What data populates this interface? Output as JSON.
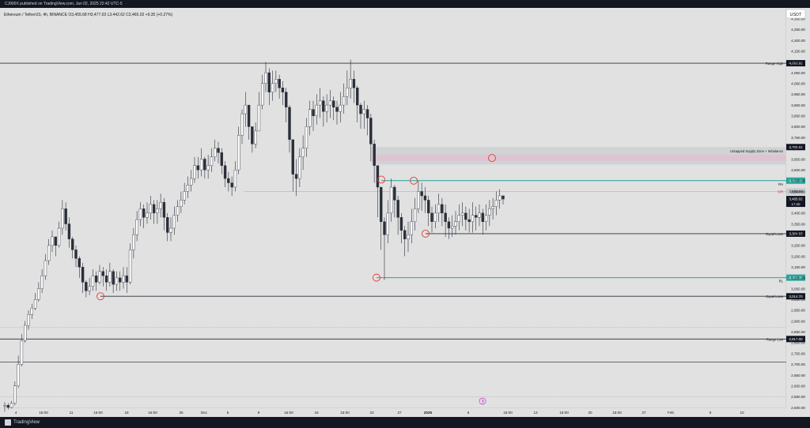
{
  "header": {
    "published": "CJ900X published on TradingView.com, Jan 02, 2025 22:42 UTC-5"
  },
  "chart_data": {
    "type": "candlestick",
    "legend": {
      "symbol": "Ethereum / TetherUS",
      "interval": "4h",
      "exchange": "BINANCE",
      "ohlc": "O3,455.68 H3,477.03 L3,442.62 C3,465.02 +9.35 (+0.27%)"
    },
    "currency_button": "USDT",
    "y_range": [
      2500,
      4350
    ],
    "y_ticks": [
      "4,300.00",
      "4,250.00",
      "4,200.00",
      "4,150.00",
      "4,100.00",
      "4,050.00",
      "4,000.00",
      "3,950.00",
      "3,900.00",
      "3,850.00",
      "3,800.00",
      "3,750.00",
      "3,700.00",
      "3,650.00",
      "3,600.00",
      "3,550.00",
      "3,500.00",
      "3,450.00",
      "3,400.00",
      "3,350.00",
      "3,300.00",
      "3,250.00",
      "3,200.00",
      "3,150.00",
      "3,100.00",
      "3,050.00",
      "3,000.00",
      "2,950.00",
      "2,900.00",
      "2,850.00",
      "2,800.00",
      "2,750.00",
      "2,700.00",
      "2,650.00",
      "2,600.00",
      "2,550.00",
      "2,500.00"
    ],
    "x_ticks": [
      "4",
      "15:00",
      "11",
      "15:00",
      "18",
      "15:00",
      "25",
      "Dec",
      "5",
      "9",
      "15:00",
      "16",
      "15:00",
      "23",
      "27",
      "2025",
      "6",
      "15:00",
      "13",
      "15:00",
      "20",
      "15:00",
      "27",
      "Feb",
      "5",
      "10"
    ],
    "levels": [
      {
        "label": "Range High",
        "value": 4093.92,
        "tag": "4,093.92",
        "style": "dark"
      },
      {
        "label": "Range Low",
        "value": 2817.0,
        "tag": "2,817.00",
        "style": "dark"
      },
      {
        "label": "Equal Lows",
        "value": 3304.63,
        "tag": "3,304.63",
        "style": "dark"
      },
      {
        "label": "Equal Lows",
        "value": 3014.7,
        "tag": "3,014.70",
        "style": "dark"
      },
      {
        "label": "RH",
        "value": 3550.18,
        "tag": "3,550.18",
        "style": "teal"
      },
      {
        "label": "RL",
        "value": 3101.0,
        "tag": "3,101.00",
        "style": "teal"
      }
    ],
    "aux_levels": [
      {
        "value": 3500.0,
        "tag": "3,500.00"
      },
      {
        "value": 2870
      },
      {
        "value": 2710
      },
      {
        "value": 2550
      }
    ],
    "zone": {
      "label": "Untapped Supply Zone + Imbalance",
      "top": 3705.62,
      "bottom": 3625,
      "tag": "3,705.62",
      "imbalance_top": 3668,
      "imbalance_bottom": 3642
    },
    "sr_label": "S/R",
    "current_price": {
      "value": 3465.02,
      "tag": "3,465.02",
      "countdown": "17:20"
    },
    "candles_close": [
      2510,
      2500,
      2520,
      2600,
      2700,
      2810,
      2880,
      2930,
      2960,
      3000,
      3050,
      3110,
      3180,
      3250,
      3290,
      3250,
      3330,
      3420,
      3350,
      3280,
      3230,
      3190,
      3150,
      3080,
      3040,
      3060,
      3110,
      3080,
      3130,
      3110,
      3080,
      3130,
      3070,
      3100,
      3080,
      3110,
      3080,
      3230,
      3300,
      3370,
      3420,
      3380,
      3400,
      3440,
      3400,
      3420,
      3450,
      3380,
      3310,
      3330,
      3390,
      3430,
      3460,
      3500,
      3530,
      3560,
      3620,
      3600,
      3650,
      3600,
      3620,
      3660,
      3700,
      3680,
      3620,
      3560,
      3540,
      3520,
      3600,
      3760,
      3860,
      3900,
      3800,
      3720,
      3780,
      3900,
      4000,
      4050,
      3960,
      4000,
      4020,
      3980,
      3960,
      3890,
      3740,
      3580,
      3560,
      3660,
      3700,
      3800,
      3880,
      3850,
      3900,
      3920,
      3870,
      3900,
      3920,
      3890,
      3870,
      3900,
      3940,
      3980,
      4020,
      3980,
      3900,
      3860,
      3880,
      3840,
      3720,
      3620,
      3520,
      3360,
      3300,
      3400,
      3520,
      3460,
      3380,
      3320,
      3280,
      3300,
      3360,
      3420,
      3500,
      3480,
      3460,
      3400,
      3360,
      3400,
      3440,
      3400,
      3360,
      3330,
      3340,
      3360,
      3390,
      3400,
      3370,
      3360,
      3390,
      3380,
      3400,
      3360,
      3390,
      3420,
      3430,
      3460,
      3480,
      3465
    ],
    "candles_range": [
      [
        2480,
        2525
      ],
      [
        2490,
        2520
      ],
      [
        2495,
        2530
      ],
      [
        2510,
        2620
      ],
      [
        2590,
        2740
      ],
      [
        2690,
        2840
      ],
      [
        2800,
        2900
      ],
      [
        2860,
        2950
      ],
      [
        2910,
        2980
      ],
      [
        2950,
        3030
      ],
      [
        2990,
        3080
      ],
      [
        3030,
        3140
      ],
      [
        3090,
        3210
      ],
      [
        3160,
        3280
      ],
      [
        3220,
        3320
      ],
      [
        3200,
        3290
      ],
      [
        3240,
        3360
      ],
      [
        3300,
        3460
      ],
      [
        3320,
        3450
      ],
      [
        3240,
        3380
      ],
      [
        3190,
        3290
      ],
      [
        3150,
        3250
      ],
      [
        3100,
        3200
      ],
      [
        3030,
        3170
      ],
      [
        3010,
        3090
      ],
      [
        3020,
        3100
      ],
      [
        3040,
        3140
      ],
      [
        3040,
        3130
      ],
      [
        3070,
        3160
      ],
      [
        3060,
        3150
      ],
      [
        3040,
        3140
      ],
      [
        3060,
        3170
      ],
      [
        3030,
        3140
      ],
      [
        3040,
        3130
      ],
      [
        3040,
        3130
      ],
      [
        3050,
        3150
      ],
      [
        3030,
        3150
      ],
      [
        3070,
        3260
      ],
      [
        3190,
        3330
      ],
      [
        3270,
        3410
      ],
      [
        3340,
        3450
      ],
      [
        3330,
        3440
      ],
      [
        3350,
        3450
      ],
      [
        3370,
        3480
      ],
      [
        3350,
        3460
      ],
      [
        3350,
        3460
      ],
      [
        3380,
        3490
      ],
      [
        3320,
        3470
      ],
      [
        3270,
        3400
      ],
      [
        3270,
        3380
      ],
      [
        3300,
        3430
      ],
      [
        3360,
        3460
      ],
      [
        3400,
        3500
      ],
      [
        3440,
        3540
      ],
      [
        3470,
        3570
      ],
      [
        3500,
        3600
      ],
      [
        3540,
        3660
      ],
      [
        3560,
        3660
      ],
      [
        3570,
        3700
      ],
      [
        3560,
        3660
      ],
      [
        3560,
        3670
      ],
      [
        3590,
        3700
      ],
      [
        3640,
        3740
      ],
      [
        3630,
        3730
      ],
      [
        3580,
        3700
      ],
      [
        3520,
        3640
      ],
      [
        3500,
        3590
      ],
      [
        3480,
        3570
      ],
      [
        3500,
        3640
      ],
      [
        3580,
        3800
      ],
      [
        3720,
        3880
      ],
      [
        3800,
        3960
      ],
      [
        3740,
        3900
      ],
      [
        3680,
        3800
      ],
      [
        3700,
        3820
      ],
      [
        3780,
        3960
      ],
      [
        3880,
        4040
      ],
      [
        3960,
        4100
      ],
      [
        3900,
        4070
      ],
      [
        3920,
        4060
      ],
      [
        3960,
        4060
      ],
      [
        3930,
        4040
      ],
      [
        3900,
        4010
      ],
      [
        3820,
        3980
      ],
      [
        3680,
        3900
      ],
      [
        3500,
        3740
      ],
      [
        3480,
        3650
      ],
      [
        3520,
        3700
      ],
      [
        3600,
        3760
      ],
      [
        3660,
        3840
      ],
      [
        3760,
        3920
      ],
      [
        3780,
        3920
      ],
      [
        3810,
        3950
      ],
      [
        3840,
        3980
      ],
      [
        3800,
        3940
      ],
      [
        3820,
        3950
      ],
      [
        3840,
        3970
      ],
      [
        3830,
        3940
      ],
      [
        3810,
        3920
      ],
      [
        3820,
        3960
      ],
      [
        3860,
        4000
      ],
      [
        3900,
        4060
      ],
      [
        3930,
        4110
      ],
      [
        3910,
        4060
      ],
      [
        3820,
        3990
      ],
      [
        3790,
        3910
      ],
      [
        3790,
        3920
      ],
      [
        3760,
        3900
      ],
      [
        3640,
        3860
      ],
      [
        3540,
        3740
      ],
      [
        3380,
        3620
      ],
      [
        3230,
        3440
      ],
      [
        3090,
        3380
      ],
      [
        3260,
        3460
      ],
      [
        3360,
        3560
      ],
      [
        3380,
        3530
      ],
      [
        3300,
        3480
      ],
      [
        3260,
        3400
      ],
      [
        3200,
        3340
      ],
      [
        3220,
        3360
      ],
      [
        3260,
        3420
      ],
      [
        3320,
        3470
      ],
      [
        3400,
        3550
      ],
      [
        3410,
        3540
      ],
      [
        3400,
        3520
      ],
      [
        3340,
        3480
      ],
      [
        3310,
        3430
      ],
      [
        3330,
        3440
      ],
      [
        3360,
        3490
      ],
      [
        3340,
        3470
      ],
      [
        3290,
        3440
      ],
      [
        3280,
        3380
      ],
      [
        3290,
        3390
      ],
      [
        3300,
        3410
      ],
      [
        3320,
        3440
      ],
      [
        3340,
        3450
      ],
      [
        3320,
        3430
      ],
      [
        3310,
        3420
      ],
      [
        3310,
        3450
      ],
      [
        3320,
        3430
      ],
      [
        3340,
        3440
      ],
      [
        3300,
        3420
      ],
      [
        3320,
        3440
      ],
      [
        3340,
        3460
      ],
      [
        3370,
        3470
      ],
      [
        3390,
        3500
      ],
      [
        3420,
        3510
      ],
      [
        3440,
        3480
      ]
    ]
  }
}
